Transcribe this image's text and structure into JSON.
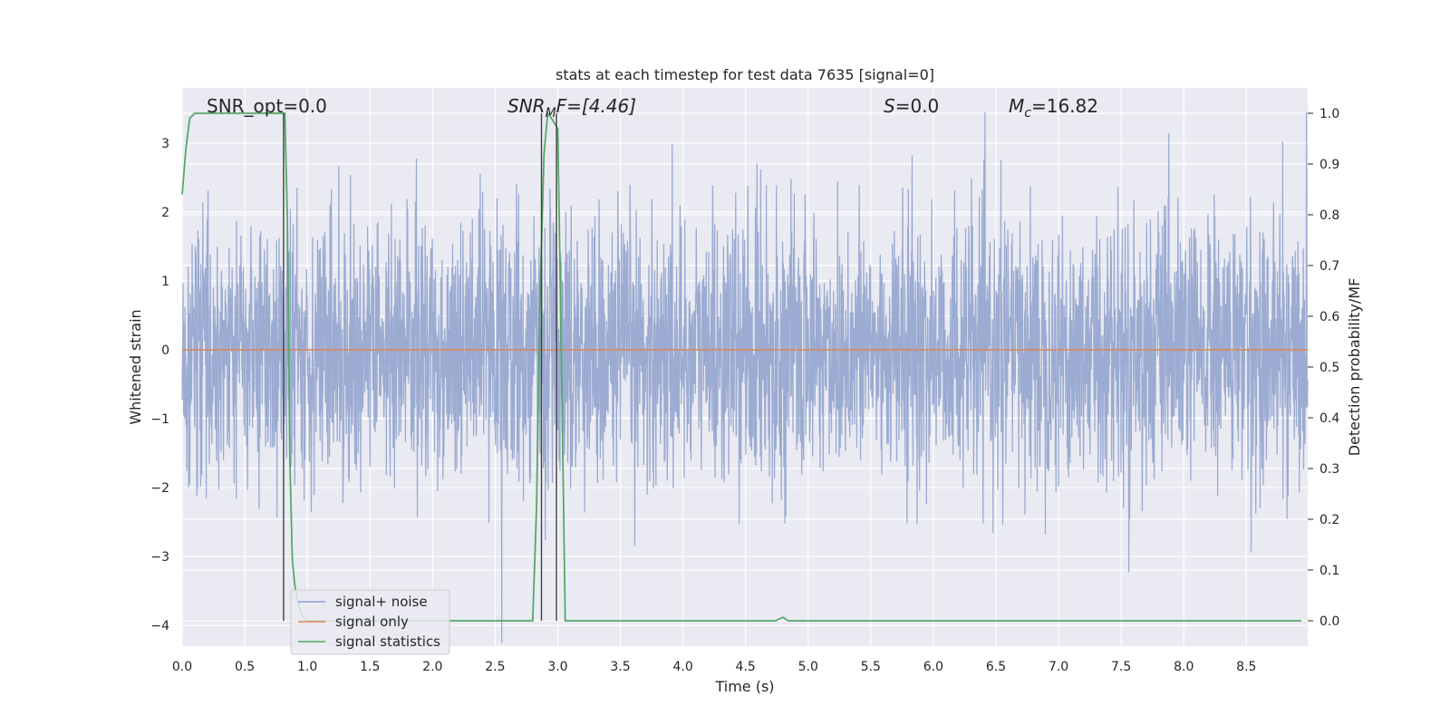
{
  "chart_data": {
    "type": "line",
    "title": "stats at each timestep for test data 7635 [signal=0]",
    "xlabel": "Time (s)",
    "ylabel": "Whitened strain",
    "y2label": "Detection probability/MF",
    "xlim": [
      0.0,
      8.99
    ],
    "ylim": [
      -4.3,
      3.8
    ],
    "y2lim": [
      -0.05,
      1.05
    ],
    "x_ticks": [
      "0.0",
      "0.5",
      "1.0",
      "1.5",
      "2.0",
      "2.5",
      "3.0",
      "3.5",
      "4.0",
      "4.5",
      "5.0",
      "5.5",
      "6.0",
      "6.5",
      "7.0",
      "7.5",
      "8.0",
      "8.5"
    ],
    "y_ticks": [
      "3",
      "2",
      "1",
      "0",
      "−1",
      "−2",
      "−3",
      "−4"
    ],
    "y2_ticks": [
      "1.0",
      "0.9",
      "0.8",
      "0.7",
      "0.6",
      "0.5",
      "0.4",
      "0.3",
      "0.2",
      "0.1",
      "0.0"
    ],
    "annotations": {
      "snr_opt": "SNR_opt=0.0",
      "snr_mf_main": "SNR",
      "snr_mf_sub": "M",
      "snr_mf_tail": "F=[4.46]",
      "s_main": "S",
      "s_tail": "=0.0",
      "mc_main": "M",
      "mc_sub": "c",
      "mc_tail": "=16.82"
    },
    "vertical_lines_x": [
      0.81,
      2.87,
      2.99
    ],
    "legend_placement": "lower-left",
    "grid": true,
    "series": [
      {
        "name": "signal+ noise",
        "axis": "left",
        "color": "#8da0cb",
        "description_values": "dense noise, 8192 samples approx",
        "noise_std": 0.95
      },
      {
        "name": "signal only",
        "axis": "left",
        "color": "#dd8452",
        "x": [
          0.0,
          8.99
        ],
        "y": [
          0.0,
          0.0
        ]
      },
      {
        "name": "signal statistics",
        "axis": "right",
        "color": "#55a868",
        "x": [
          0.0,
          0.03,
          0.06,
          0.1,
          0.15,
          0.3,
          0.5,
          0.7,
          0.78,
          0.8,
          0.82,
          0.84,
          0.86,
          0.88,
          0.9,
          0.93,
          0.96,
          1.0,
          1.5,
          2.0,
          2.5,
          2.8,
          2.83,
          2.86,
          2.89,
          2.92,
          2.95,
          3.0,
          3.03,
          3.06,
          3.1,
          3.5,
          4.0,
          4.5,
          4.74,
          4.8,
          4.84,
          4.9,
          5.5,
          6.0,
          7.0,
          8.0,
          8.94
        ],
        "y": [
          0.84,
          0.93,
          0.99,
          1.0,
          1.0,
          1.0,
          1.0,
          1.0,
          1.0,
          1.0,
          1.0,
          0.8,
          0.32,
          0.12,
          0.07,
          0.03,
          0.01,
          0.0,
          0.0,
          0.0,
          0.0,
          0.0,
          0.22,
          0.65,
          0.92,
          1.0,
          0.99,
          0.97,
          0.5,
          0.0,
          0.0,
          0.0,
          0.0,
          0.0,
          0.0,
          0.007,
          0.0,
          0.0,
          0.0,
          0.0,
          0.0,
          0.0,
          0.0
        ]
      }
    ]
  }
}
